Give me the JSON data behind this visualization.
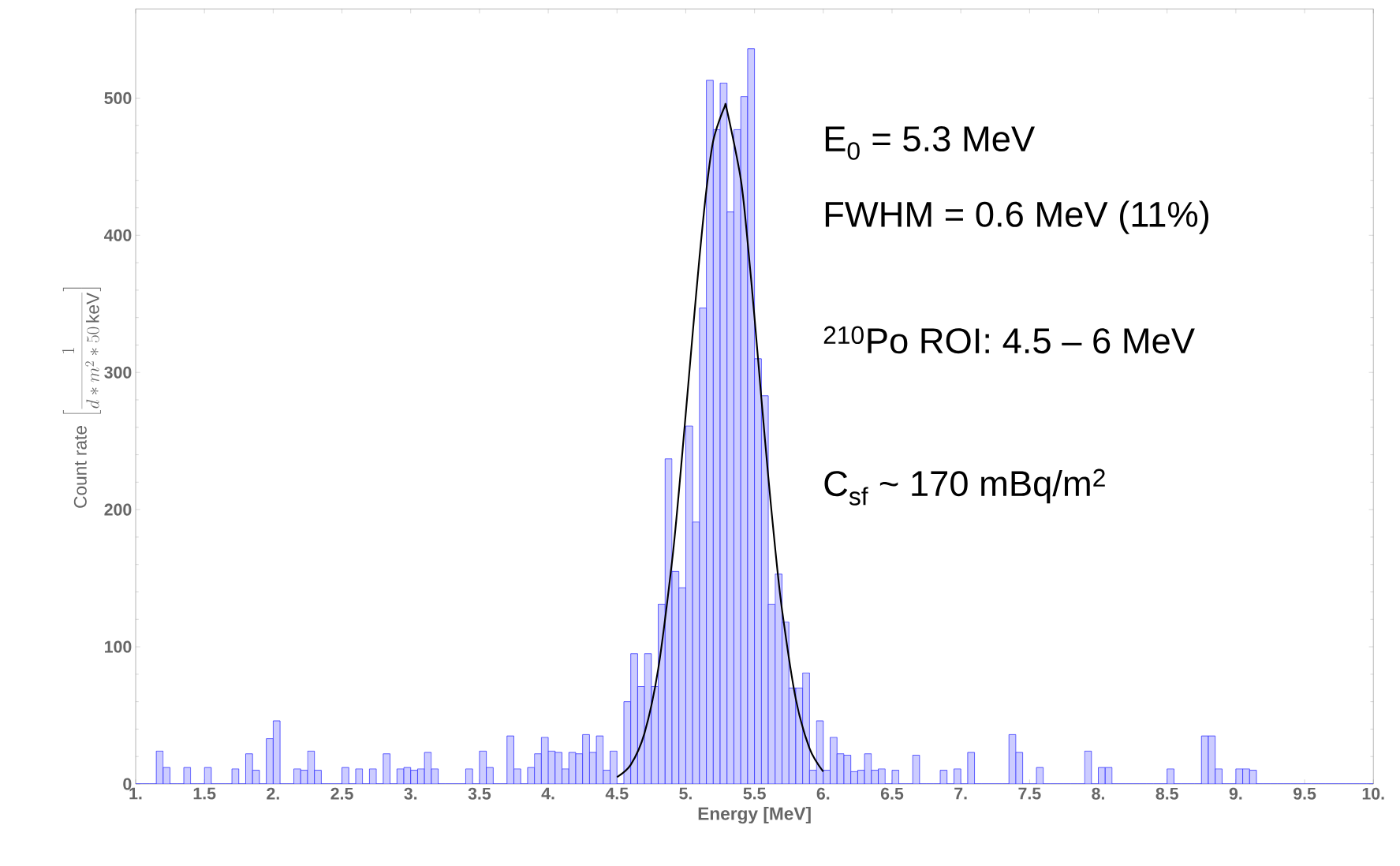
{
  "chart_data": {
    "type": "histogram",
    "xlabel": "Energy [MeV]",
    "ylabel": "\\mathrm{Count\\ rate}\\ \\left[\\frac{1}{d*m^{2}*50\\,\\mathrm{keV}}\\right]",
    "annotations": [
      "E$_{0}$ =  5.3 MeV",
      "FWHM = 0.6 MeV (11%)",
      "$^{210}$Po ROI: 4.5 – 6 MeV",
      "C$_{sf}$ ~ 170 mBq/m$^{2}$"
    ],
    "bins": [
      1,
      1.05,
      1.1,
      1.15,
      1.2,
      1.25,
      1.3,
      1.35,
      1.4,
      1.45,
      1.5,
      1.55,
      1.6,
      1.65,
      1.7,
      1.75,
      1.8,
      1.85,
      1.9,
      1.95,
      2,
      2.05,
      2.1,
      2.15,
      2.2,
      2.25,
      2.3,
      2.35,
      2.4,
      2.45,
      2.5,
      2.55,
      2.6,
      2.65,
      2.7,
      2.75,
      2.8,
      2.85,
      2.9,
      2.95,
      3,
      3.05,
      3.1,
      3.15,
      3.2,
      3.25,
      3.3,
      3.35,
      3.4,
      3.45,
      3.5,
      3.55,
      3.6,
      3.65,
      3.7,
      3.75,
      3.8,
      3.85,
      3.9,
      3.95,
      4,
      4.05,
      4.1,
      4.15,
      4.2,
      4.25,
      4.3,
      4.35,
      4.4,
      4.45,
      4.5,
      4.55,
      4.6,
      4.65,
      4.7,
      4.75,
      4.8,
      4.85,
      4.9,
      4.95,
      5,
      5.05,
      5.1,
      5.15,
      5.2,
      5.25,
      5.3,
      5.35,
      5.4,
      5.45,
      5.5,
      5.55,
      5.6,
      5.65,
      5.7,
      5.75,
      5.8,
      5.85,
      5.9,
      5.95,
      6,
      6.05,
      6.1,
      6.15,
      6.2,
      6.25,
      6.3,
      6.35,
      6.4,
      6.45,
      6.5,
      6.55,
      6.6,
      6.65,
      6.7,
      6.75,
      6.8,
      6.85,
      6.9,
      6.95,
      7,
      7.05,
      7.1,
      7.15,
      7.2,
      7.25,
      7.3,
      7.35,
      7.4,
      7.45,
      7.5,
      7.55,
      7.6,
      7.65,
      7.7,
      7.75,
      7.8,
      7.85,
      7.9,
      7.95,
      8,
      8.05,
      8.1,
      8.15,
      8.2,
      8.25,
      8.3,
      8.35,
      8.4,
      8.45,
      8.5,
      8.55,
      8.6,
      8.65,
      8.7,
      8.75,
      8.8,
      8.85,
      8.9,
      8.95,
      9,
      9.05,
      9.1,
      9.15,
      9.2,
      9.25,
      9.3,
      9.35,
      9.4,
      9.45,
      9.5,
      9.55,
      9.6,
      9.65,
      9.7,
      9.75,
      9.8,
      9.85,
      9.9,
      9.95,
      10
    ],
    "values": [
      0,
      0,
      0,
      24,
      12,
      0,
      0,
      12,
      0,
      0,
      12,
      0,
      0,
      0,
      11,
      0,
      22,
      10,
      0,
      33,
      46,
      0,
      0,
      11,
      10,
      24,
      10,
      0,
      0,
      0,
      12,
      0,
      11,
      0,
      11,
      0,
      22,
      0,
      11,
      12,
      10,
      11,
      23,
      11,
      0,
      0,
      0,
      0,
      11,
      0,
      24,
      12,
      0,
      0,
      35,
      11,
      0,
      12,
      22,
      34,
      24,
      23,
      11,
      23,
      22,
      36,
      23,
      35,
      10,
      24,
      0,
      60,
      95,
      71,
      95,
      71,
      131,
      237,
      155,
      143,
      261,
      191,
      347,
      513,
      477,
      511,
      417,
      477,
      501,
      536,
      310,
      283,
      131,
      153,
      118,
      70,
      70,
      81,
      10,
      46,
      10,
      34,
      22,
      21,
      9,
      10,
      22,
      10,
      11,
      0,
      10,
      0,
      0,
      21,
      0,
      0,
      0,
      10,
      0,
      11,
      0,
      23,
      0,
      0,
      0,
      0,
      0,
      36,
      23,
      0,
      0,
      12,
      0,
      0,
      0,
      0,
      0,
      0,
      24,
      0,
      12,
      12,
      0,
      0,
      0,
      0,
      0,
      0,
      0,
      0,
      11,
      0,
      0,
      0,
      0,
      35,
      35,
      11,
      0,
      0,
      11,
      11,
      10,
      0,
      0,
      0,
      0,
      0,
      0,
      0,
      0,
      0,
      0,
      0,
      0,
      0,
      0,
      0,
      0,
      0
    ],
    "color": "#3333ff",
    "series": [
      {
        "type": "line",
        "color": "#000000",
        "x": [
          4.5,
          4.6,
          4.7,
          4.8,
          4.9,
          4.95,
          5,
          5.05,
          5.1,
          5.15,
          5.2,
          5.28,
          5.3,
          5.4,
          5.45,
          5.5,
          5.55,
          5.6,
          5.65,
          5.7,
          5.8,
          5.9,
          6
        ],
        "values": [
          5,
          14,
          37,
          84,
          162,
          213,
          270,
          328,
          384,
          433,
          469,
          493,
          491,
          441,
          395,
          340,
          281,
          224,
          172,
          127,
          62,
          26,
          9
        ]
      }
    ],
    "xlim": [
      1,
      10
    ],
    "ylim": [
      0,
      565
    ],
    "xticks": [
      {
        "value": 1,
        "label": "1."
      },
      1.5,
      {
        "value": 2,
        "label": "2."
      },
      2.5,
      {
        "value": 3,
        "label": "3."
      },
      3.5,
      {
        "value": 4,
        "label": "4."
      },
      4.5,
      {
        "value": 5,
        "label": "5."
      },
      5.5,
      {
        "value": 6,
        "label": "6."
      },
      6.5,
      {
        "value": 7,
        "label": "7."
      },
      7.5,
      {
        "value": 8,
        "label": "8."
      },
      8.5,
      {
        "value": 9,
        "label": "9."
      },
      9.5,
      {
        "value": 10,
        "label": "10."
      }
    ],
    "yticks": [
      0,
      100,
      200,
      300,
      400,
      500
    ]
  }
}
